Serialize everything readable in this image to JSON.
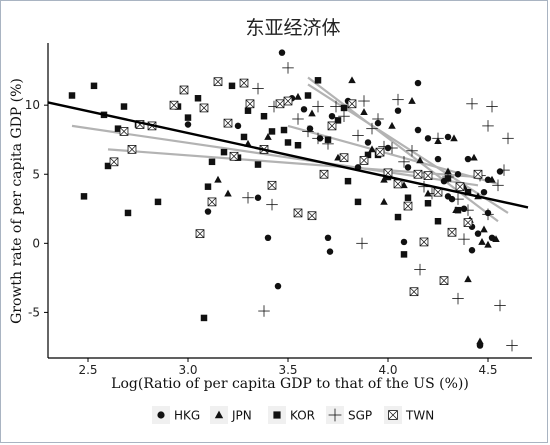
{
  "chart_data": {
    "type": "scatter",
    "title": "东亚经济体",
    "xlabel": "Log(Ratio of per capita GDP to that of the US (%))",
    "ylabel": "Growth rate of per capita GDP (%)",
    "xlim": [
      2.3,
      4.72
    ],
    "ylim": [
      -8.3,
      14.5
    ],
    "x_ticks": [
      2.5,
      3.0,
      3.5,
      4.0,
      4.5
    ],
    "x_tick_labels": [
      "2.5",
      "3.0",
      "3.5",
      "4.0",
      "4.5"
    ],
    "y_ticks": [
      -5,
      0,
      5,
      10
    ],
    "y_tick_labels": [
      "-5",
      "0",
      "5",
      "10"
    ],
    "grid": false,
    "legend_position": "bottom",
    "marker_color": "#111111",
    "fit_color": "#000000",
    "country_fit_color": "#b3b3b3",
    "series": [
      {
        "name": "HKG",
        "marker": "circle",
        "points": [
          [
            3.47,
            13.8
          ],
          [
            3.52,
            10.5
          ],
          [
            3.58,
            9.7
          ],
          [
            3.61,
            8.3
          ],
          [
            3.66,
            7.6
          ],
          [
            3.72,
            9.2
          ],
          [
            3.8,
            10.3
          ],
          [
            3.9,
            7.3
          ],
          [
            3.95,
            8.7
          ],
          [
            4.0,
            6.9
          ],
          [
            4.05,
            9.6
          ],
          [
            4.1,
            5.5
          ],
          [
            4.15,
            8.2
          ],
          [
            4.2,
            7.6
          ],
          [
            4.25,
            6.1
          ],
          [
            4.28,
            4.5
          ],
          [
            4.3,
            7.7
          ],
          [
            4.32,
            3.2
          ],
          [
            4.35,
            5.0
          ],
          [
            4.38,
            2.5
          ],
          [
            4.4,
            6.1
          ],
          [
            4.42,
            1.2
          ],
          [
            4.45,
            0.7
          ],
          [
            4.48,
            3.7
          ],
          [
            4.5,
            2.2
          ],
          [
            4.52,
            0.4
          ],
          [
            3.0,
            8.6
          ],
          [
            3.1,
            2.3
          ],
          [
            3.25,
            8.5
          ],
          [
            3.35,
            3.3
          ],
          [
            3.4,
            0.4
          ],
          [
            3.45,
            -3.1
          ],
          [
            3.7,
            0.4
          ],
          [
            3.71,
            -0.6
          ],
          [
            4.08,
            0.1
          ],
          [
            4.15,
            11.6
          ],
          [
            4.3,
            3.4
          ],
          [
            4.42,
            -0.5
          ],
          [
            4.46,
            -7.4
          ],
          [
            4.5,
            4.6
          ],
          [
            4.56,
            5.2
          ],
          [
            3.85,
            5.5
          ]
        ]
      },
      {
        "name": "JPN",
        "marker": "triangle",
        "points": [
          [
            3.15,
            4.6
          ],
          [
            3.2,
            3.6
          ],
          [
            3.3,
            7.2
          ],
          [
            3.4,
            7.7
          ],
          [
            3.55,
            10.6
          ],
          [
            3.62,
            9.4
          ],
          [
            3.75,
            6.2
          ],
          [
            3.82,
            11.8
          ],
          [
            3.88,
            9.5
          ],
          [
            3.92,
            6.8
          ],
          [
            3.98,
            4.6
          ],
          [
            4.02,
            8.5
          ],
          [
            4.08,
            4.2
          ],
          [
            4.12,
            10.3
          ],
          [
            4.16,
            6.0
          ],
          [
            4.2,
            3.6
          ],
          [
            4.25,
            7.4
          ],
          [
            4.3,
            5.2
          ],
          [
            4.34,
            2.4
          ],
          [
            4.38,
            4.1
          ],
          [
            4.41,
            1.7
          ],
          [
            4.43,
            6.2
          ],
          [
            4.45,
            3.4
          ],
          [
            4.48,
            1.0
          ],
          [
            4.5,
            -0.1
          ],
          [
            4.52,
            4.6
          ],
          [
            4.54,
            0.3
          ],
          [
            4.46,
            -7.1
          ],
          [
            4.4,
            -2.6
          ],
          [
            4.33,
            7.6
          ],
          [
            4.47,
            0.1
          ],
          [
            3.98,
            3.0
          ]
        ]
      },
      {
        "name": "KOR",
        "marker": "square",
        "points": [
          [
            2.42,
            10.7
          ],
          [
            2.53,
            11.4
          ],
          [
            2.48,
            3.4
          ],
          [
            2.6,
            5.6
          ],
          [
            2.65,
            8.3
          ],
          [
            2.68,
            9.9
          ],
          [
            2.7,
            2.2
          ],
          [
            2.85,
            3.0
          ],
          [
            2.95,
            9.9
          ],
          [
            3.0,
            9.1
          ],
          [
            3.05,
            10.5
          ],
          [
            3.1,
            4.1
          ],
          [
            3.12,
            5.9
          ],
          [
            3.18,
            6.6
          ],
          [
            3.22,
            11.4
          ],
          [
            3.28,
            7.7
          ],
          [
            3.3,
            9.6
          ],
          [
            3.35,
            5.7
          ],
          [
            3.38,
            9.2
          ],
          [
            3.42,
            8.1
          ],
          [
            3.48,
            8.2
          ],
          [
            3.55,
            7.1
          ],
          [
            3.6,
            10.7
          ],
          [
            3.65,
            11.8
          ],
          [
            3.7,
            7.5
          ],
          [
            3.75,
            8.9
          ],
          [
            3.78,
            9.8
          ],
          [
            3.8,
            4.5
          ],
          [
            3.85,
            3.0
          ],
          [
            3.9,
            6.4
          ],
          [
            3.95,
            6.4
          ],
          [
            4.0,
            4.8
          ],
          [
            4.05,
            1.9
          ],
          [
            4.08,
            -0.8
          ],
          [
            4.1,
            3.3
          ],
          [
            4.2,
            2.9
          ],
          [
            4.25,
            1.6
          ],
          [
            4.3,
            4.7
          ],
          [
            4.35,
            2.4
          ],
          [
            3.08,
            -5.4
          ],
          [
            2.58,
            9.3
          ],
          [
            2.75,
            8.6
          ],
          [
            3.25,
            6.2
          ],
          [
            3.5,
            7.3
          ],
          [
            4.4,
            3.7
          ]
        ]
      },
      {
        "name": "SGP",
        "marker": "plus",
        "points": [
          [
            3.35,
            11.2
          ],
          [
            3.43,
            9.9
          ],
          [
            3.5,
            12.7
          ],
          [
            3.55,
            9.0
          ],
          [
            3.6,
            8.1
          ],
          [
            3.65,
            9.9
          ],
          [
            3.7,
            7.2
          ],
          [
            3.74,
            9.9
          ],
          [
            3.78,
            9.2
          ],
          [
            3.85,
            7.8
          ],
          [
            3.88,
            10.3
          ],
          [
            3.92,
            8.3
          ],
          [
            3.95,
            9.0
          ],
          [
            3.98,
            7.0
          ],
          [
            4.02,
            6.9
          ],
          [
            4.05,
            10.4
          ],
          [
            4.08,
            5.9
          ],
          [
            4.12,
            6.7
          ],
          [
            4.18,
            4.1
          ],
          [
            4.22,
            3.6
          ],
          [
            4.25,
            7.6
          ],
          [
            4.3,
            4.8
          ],
          [
            4.35,
            3.2
          ],
          [
            4.38,
            0.3
          ],
          [
            4.42,
            10.1
          ],
          [
            4.46,
            4.9
          ],
          [
            4.5,
            8.5
          ],
          [
            4.52,
            9.9
          ],
          [
            4.55,
            4.2
          ],
          [
            4.58,
            5.3
          ],
          [
            4.6,
            7.6
          ],
          [
            4.62,
            -7.4
          ],
          [
            4.56,
            -4.5
          ],
          [
            4.35,
            -4.0
          ],
          [
            3.38,
            -4.9
          ],
          [
            3.3,
            3.3
          ],
          [
            3.42,
            2.8
          ],
          [
            3.65,
            7.6
          ],
          [
            3.87,
            0.0
          ],
          [
            4.16,
            -1.9
          ],
          [
            4.4,
            2.4
          ],
          [
            4.5,
            2.1
          ]
        ]
      },
      {
        "name": "TWN",
        "marker": "boxcross",
        "points": [
          [
            2.68,
            8.1
          ],
          [
            2.72,
            6.8
          ],
          [
            2.76,
            8.6
          ],
          [
            2.82,
            8.5
          ],
          [
            2.63,
            5.9
          ],
          [
            2.93,
            10.0
          ],
          [
            2.98,
            11.1
          ],
          [
            3.08,
            9.8
          ],
          [
            3.15,
            11.7
          ],
          [
            3.2,
            8.7
          ],
          [
            3.23,
            6.3
          ],
          [
            3.28,
            11.6
          ],
          [
            3.31,
            10.1
          ],
          [
            3.38,
            6.8
          ],
          [
            3.42,
            4.2
          ],
          [
            3.46,
            10.1
          ],
          [
            3.5,
            10.3
          ],
          [
            3.55,
            2.2
          ],
          [
            3.62,
            2.0
          ],
          [
            3.68,
            5.0
          ],
          [
            3.72,
            8.5
          ],
          [
            3.78,
            6.2
          ],
          [
            3.82,
            10.1
          ],
          [
            3.88,
            6.0
          ],
          [
            3.96,
            6.6
          ],
          [
            4.0,
            5.1
          ],
          [
            4.05,
            4.3
          ],
          [
            4.1,
            2.7
          ],
          [
            4.15,
            5.0
          ],
          [
            4.2,
            4.9
          ],
          [
            4.25,
            3.7
          ],
          [
            4.28,
            -2.7
          ],
          [
            4.32,
            0.8
          ],
          [
            4.36,
            4.1
          ],
          [
            4.4,
            1.5
          ],
          [
            4.45,
            5.0
          ],
          [
            3.06,
            0.7
          ],
          [
            3.12,
            3.0
          ],
          [
            4.13,
            -3.5
          ],
          [
            4.18,
            0.1
          ]
        ]
      }
    ],
    "overall_fit": {
      "x": [
        2.3,
        4.7
      ],
      "y": [
        10.2,
        2.6
      ]
    },
    "country_fits": [
      {
        "name": "HKG",
        "x": [
          3.5,
          4.55
        ],
        "y": [
          8.5,
          4.3
        ]
      },
      {
        "name": "JPN",
        "x": [
          3.6,
          4.55
        ],
        "y": [
          12.0,
          1.6
        ]
      },
      {
        "name": "KOR",
        "x": [
          2.42,
          4.45
        ],
        "y": [
          8.5,
          4.2
        ]
      },
      {
        "name": "SGP",
        "x": [
          3.6,
          4.6
        ],
        "y": [
          11.5,
          2.2
        ]
      },
      {
        "name": "TWN",
        "x": [
          2.6,
          4.45
        ],
        "y": [
          6.8,
          4.8
        ]
      }
    ]
  }
}
